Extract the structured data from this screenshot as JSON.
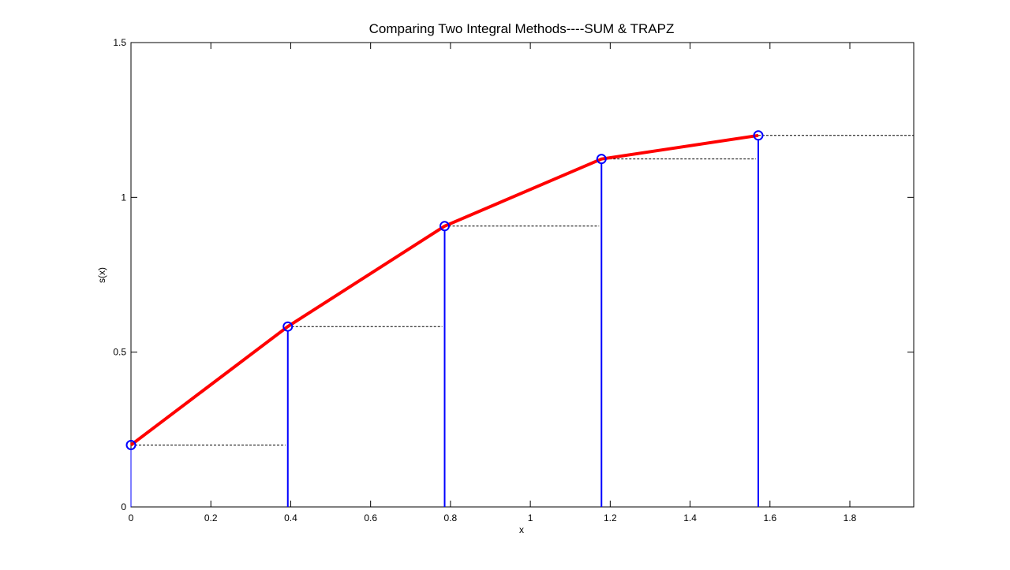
{
  "chart_data": {
    "type": "line",
    "title": "Comparing Two Integral Methods----SUM & TRAPZ",
    "xlabel": "x",
    "ylabel": "s(x)",
    "xlim": [
      0,
      1.96
    ],
    "ylim": [
      0,
      1.5
    ],
    "x_ticks": [
      0,
      0.2,
      0.4,
      0.6,
      0.8,
      1,
      1.2,
      1.4,
      1.6,
      1.8
    ],
    "x_tick_labels": [
      "0",
      "0.2",
      "0.4",
      "0.6",
      "0.8",
      "1",
      "1.2",
      "1.4",
      "1.6",
      "1.8"
    ],
    "y_ticks": [
      0,
      0.5,
      1,
      1.5
    ],
    "y_tick_labels": [
      "0",
      "0.5",
      "1",
      "1.5"
    ],
    "grid": false,
    "series": [
      {
        "role": "trapz-line",
        "color": "#ff0000",
        "x": [
          0,
          0.3927,
          0.7854,
          1.1781,
          1.5708
        ],
        "y": [
          0.2,
          0.5827,
          0.9071,
          1.1239,
          1.2
        ]
      },
      {
        "role": "sum-stems",
        "color": "#0000ff",
        "marker": "circle",
        "x": [
          0,
          0.3927,
          0.7854,
          1.1781,
          1.5708
        ],
        "y": [
          0.2,
          0.5827,
          0.9071,
          1.1239,
          1.2
        ]
      }
    ],
    "dashed_steps": {
      "color": "#000000",
      "segments": [
        {
          "y": 0.2,
          "x_from": 0,
          "x_to": 0.3927
        },
        {
          "y": 0.5827,
          "x_from": 0.3927,
          "x_to": 0.7854
        },
        {
          "y": 0.9071,
          "x_from": 0.7854,
          "x_to": 1.1781
        },
        {
          "y": 1.1239,
          "x_from": 1.1781,
          "x_to": 1.5708
        },
        {
          "y": 1.2,
          "x_from": 1.5708,
          "x_to": 1.96
        }
      ]
    }
  }
}
